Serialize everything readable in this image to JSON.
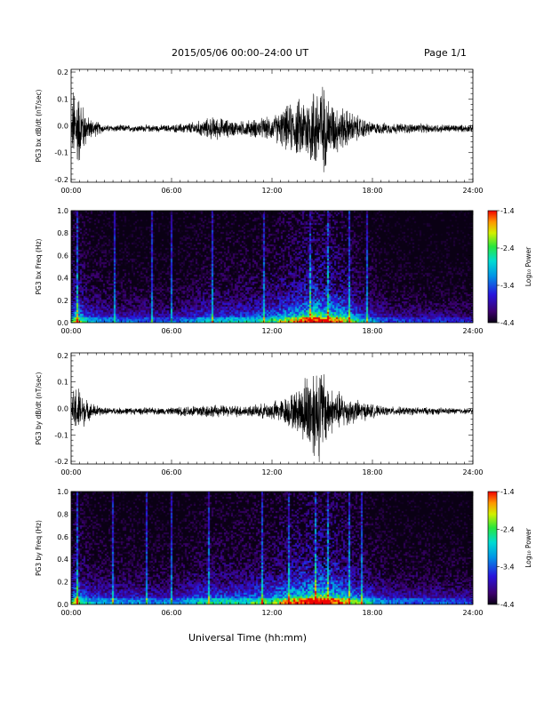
{
  "header": {
    "title": "2015/05/06  00:00–24:00 UT",
    "page": "Page 1/1"
  },
  "xlabel": "Universal Time (hh:mm)",
  "colorbar": {
    "label": "Log₁₀ Power",
    "ticks": [
      "-1.4",
      "-2.4",
      "-3.4",
      "-4.4"
    ],
    "range": [
      -4.4,
      -1.4
    ]
  },
  "chart_data": [
    {
      "type": "line",
      "title": "",
      "ylabel": "PG3 bx dB/dt (nT/sec)",
      "xlabel": "",
      "x_ticks": [
        "00:00",
        "06:00",
        "12:00",
        "18:00",
        "24:00"
      ],
      "y_ticks": [
        "0.2",
        "0.1",
        "0.0",
        "-0.1",
        "-0.2"
      ],
      "xlim_hours": [
        0,
        24
      ],
      "ylim": [
        -0.21,
        0.21
      ],
      "baseline": -0.01,
      "envelope": [
        {
          "hour": 0.0,
          "amp": 0.01
        },
        {
          "hour": 0.15,
          "amp": 0.2
        },
        {
          "hour": 0.5,
          "amp": 0.15
        },
        {
          "hour": 1.0,
          "amp": 0.05
        },
        {
          "hour": 2.0,
          "amp": 0.015
        },
        {
          "hour": 6.0,
          "amp": 0.015
        },
        {
          "hour": 7.5,
          "amp": 0.03
        },
        {
          "hour": 8.5,
          "amp": 0.05
        },
        {
          "hour": 10.0,
          "amp": 0.03
        },
        {
          "hour": 12.0,
          "amp": 0.05
        },
        {
          "hour": 13.0,
          "amp": 0.1
        },
        {
          "hour": 14.0,
          "amp": 0.14
        },
        {
          "hour": 14.9,
          "amp": 0.21
        },
        {
          "hour": 15.5,
          "amp": 0.12
        },
        {
          "hour": 17.0,
          "amp": 0.06
        },
        {
          "hour": 18.0,
          "amp": 0.025
        },
        {
          "hour": 24.0,
          "amp": 0.015
        }
      ]
    },
    {
      "type": "heatmap",
      "title": "",
      "ylabel": "PG3 bx Freq (Hz)",
      "xlabel": "",
      "x_ticks": [
        "00:00",
        "06:00",
        "12:00",
        "18:00",
        "24:00"
      ],
      "y_ticks": [
        "1.0",
        "0.8",
        "0.6",
        "0.4",
        "0.2",
        "0.0"
      ],
      "ylim": [
        0,
        1.0
      ],
      "colorscale_range": [
        -4.4,
        -1.4
      ],
      "activity": [
        {
          "hour": 0.0,
          "level": 0.5
        },
        {
          "hour": 0.3,
          "level": 0.75
        },
        {
          "hour": 1.0,
          "level": 0.45
        },
        {
          "hour": 2.5,
          "level": 0.35
        },
        {
          "hour": 6.0,
          "level": 0.3
        },
        {
          "hour": 8.0,
          "level": 0.45
        },
        {
          "hour": 10.0,
          "level": 0.45
        },
        {
          "hour": 12.0,
          "level": 0.55
        },
        {
          "hour": 13.5,
          "level": 0.75
        },
        {
          "hour": 14.5,
          "level": 0.95
        },
        {
          "hour": 16.0,
          "level": 0.8
        },
        {
          "hour": 17.5,
          "level": 0.45
        },
        {
          "hour": 19.0,
          "level": 0.3
        },
        {
          "hour": 24.0,
          "level": 0.25
        }
      ],
      "bright_streaks_hours": [
        0.3,
        2.6,
        4.8,
        5.9,
        8.4,
        11.5,
        14.2,
        15.3,
        16.6,
        17.6
      ]
    },
    {
      "type": "line",
      "title": "",
      "ylabel": "PG3 by dB/dt (nT/sec)",
      "xlabel": "",
      "x_ticks": [
        "00:00",
        "06:00",
        "12:00",
        "18:00",
        "24:00"
      ],
      "y_ticks": [
        "0.2",
        "0.1",
        "0.0",
        "-0.1",
        "-0.2"
      ],
      "xlim_hours": [
        0,
        24
      ],
      "ylim": [
        -0.21,
        0.21
      ],
      "baseline": -0.01,
      "envelope": [
        {
          "hour": 0.0,
          "amp": 0.01
        },
        {
          "hour": 0.2,
          "amp": 0.12
        },
        {
          "hour": 0.5,
          "amp": 0.1
        },
        {
          "hour": 1.0,
          "amp": 0.04
        },
        {
          "hour": 2.0,
          "amp": 0.015
        },
        {
          "hour": 6.0,
          "amp": 0.015
        },
        {
          "hour": 7.5,
          "amp": 0.03
        },
        {
          "hour": 9.0,
          "amp": 0.025
        },
        {
          "hour": 11.0,
          "amp": 0.025
        },
        {
          "hour": 12.5,
          "amp": 0.05
        },
        {
          "hour": 13.5,
          "amp": 0.09
        },
        {
          "hour": 14.4,
          "amp": 0.21
        },
        {
          "hour": 14.9,
          "amp": 0.21
        },
        {
          "hour": 15.5,
          "amp": 0.1
        },
        {
          "hour": 17.0,
          "amp": 0.05
        },
        {
          "hour": 18.5,
          "amp": 0.02
        },
        {
          "hour": 24.0,
          "amp": 0.012
        }
      ]
    },
    {
      "type": "heatmap",
      "title": "",
      "ylabel": "PG3 by Freq (Hz)",
      "xlabel": "Universal Time (hh:mm)",
      "x_ticks": [
        "00:00",
        "06:00",
        "12:00",
        "18:00",
        "24:00"
      ],
      "y_ticks": [
        "1.0",
        "0.8",
        "0.6",
        "0.4",
        "0.2",
        "0.0"
      ],
      "ylim": [
        0,
        1.0
      ],
      "colorscale_range": [
        -4.4,
        -1.4
      ],
      "activity": [
        {
          "hour": 0.0,
          "level": 0.5
        },
        {
          "hour": 0.3,
          "level": 0.7
        },
        {
          "hour": 1.0,
          "level": 0.45
        },
        {
          "hour": 2.5,
          "level": 0.4
        },
        {
          "hour": 6.0,
          "level": 0.35
        },
        {
          "hour": 8.0,
          "level": 0.5
        },
        {
          "hour": 10.0,
          "level": 0.5
        },
        {
          "hour": 12.0,
          "level": 0.6
        },
        {
          "hour": 13.5,
          "level": 0.8
        },
        {
          "hour": 14.8,
          "level": 1.0
        },
        {
          "hour": 16.0,
          "level": 0.8
        },
        {
          "hour": 17.5,
          "level": 0.5
        },
        {
          "hour": 19.0,
          "level": 0.35
        },
        {
          "hour": 24.0,
          "level": 0.3
        }
      ],
      "bright_streaks_hours": [
        0.3,
        2.4,
        4.5,
        5.9,
        8.2,
        11.4,
        13.0,
        14.6,
        15.3,
        16.6,
        17.3
      ]
    }
  ]
}
